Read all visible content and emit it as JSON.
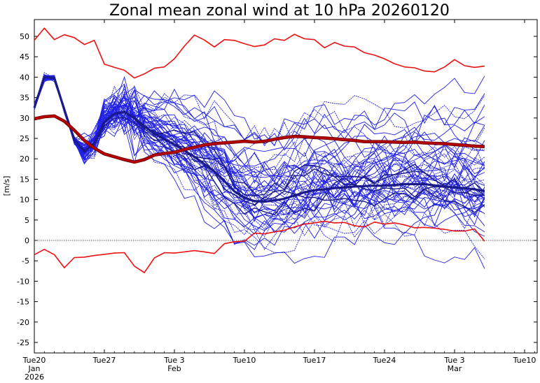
{
  "chart_data": {
    "type": "line",
    "title": "Zonal mean zonal wind at 10 hPa 20260120",
    "ylabel": "[m/s]",
    "xlabel": "",
    "ylim": [
      -28,
      55
    ],
    "xlim": [
      0,
      50
    ],
    "grid": false,
    "y_ticks": [
      50,
      45,
      40,
      35,
      30,
      25,
      20,
      15,
      10,
      5,
      0,
      -5,
      -10,
      -15,
      -20,
      -25
    ],
    "x_ticks": [
      {
        "day": 0,
        "lines": [
          "Tue20",
          "Jan",
          "2026"
        ]
      },
      {
        "day": 7,
        "lines": [
          "Tue27"
        ]
      },
      {
        "day": 14,
        "lines": [
          "Tue 3",
          "Feb"
        ]
      },
      {
        "day": 21,
        "lines": [
          "Tue10"
        ]
      },
      {
        "day": 28,
        "lines": [
          "Tue17"
        ]
      },
      {
        "day": 35,
        "lines": [
          "Tue24"
        ]
      },
      {
        "day": 42,
        "lines": [
          "Tue 3",
          "Mar"
        ]
      },
      {
        "day": 49,
        "lines": [
          "Tue10"
        ]
      }
    ],
    "x_unit": "days since Jan 20 2026",
    "zero_line": 0,
    "colors": {
      "members": "#1f1fe6",
      "ensemble_mean": "#1a1a8a",
      "climatology_mean": "#b40000",
      "climatology_extremes": "#ee1111"
    },
    "series": [
      {
        "name": "",
        "role": "climatology_max",
        "x": [
          0,
          1,
          2,
          3,
          4,
          5,
          6,
          7,
          8,
          9,
          10,
          11,
          12,
          13,
          14,
          15,
          16,
          17,
          18,
          19,
          20,
          21,
          22,
          23,
          24,
          25,
          26,
          27,
          28,
          29,
          30,
          31,
          32,
          33,
          34,
          35,
          36,
          37,
          38,
          39,
          40,
          41,
          42,
          43,
          44,
          45
        ],
        "values": [
          49,
          52,
          49.2,
          50.4,
          49.7,
          48,
          49,
          43.2,
          42.4,
          41.7,
          39.8,
          40.8,
          42.2,
          42.5,
          44.5,
          47.6,
          50.3,
          49.1,
          47.4,
          49.2,
          49,
          48.2,
          47.5,
          47.9,
          49.4,
          49,
          50.5,
          49.4,
          49.2,
          47.2,
          48.5,
          47.6,
          47.4,
          46,
          45.4,
          44.5,
          43.3,
          42.5,
          42.3,
          41.5,
          41.3,
          42.5,
          44.3,
          42.8,
          42.4,
          42.7
        ]
      },
      {
        "name": "",
        "role": "climatology_min",
        "x": [
          0,
          1,
          2,
          3,
          4,
          5,
          6,
          7,
          8,
          9,
          10,
          11,
          12,
          13,
          14,
          15,
          16,
          17,
          18,
          19,
          20,
          21,
          22,
          23,
          24,
          25,
          26,
          27,
          28,
          29,
          30,
          31,
          32,
          33,
          34,
          35,
          36,
          37,
          38,
          39,
          40,
          41,
          42,
          43,
          44,
          45
        ],
        "values": [
          -3.5,
          -2.2,
          -3.5,
          -6.7,
          -4.2,
          -4.1,
          -3.7,
          -3.4,
          -3.1,
          -3,
          -6.3,
          -7.9,
          -4.3,
          -3,
          -3.1,
          -2.8,
          -2.5,
          -2.8,
          -3.2,
          -0.8,
          -0.3,
          -0.2,
          1.8,
          1.6,
          2.1,
          2.5,
          3.3,
          4,
          4.3,
          4.7,
          4.3,
          4.4,
          3.6,
          3.3,
          4.5,
          4,
          4.3,
          3.8,
          3.1,
          3.2,
          3,
          2.7,
          2.3,
          2.3,
          2.8,
          -0.2
        ]
      },
      {
        "name": "",
        "role": "climatology_mean",
        "x": [
          0,
          1,
          2,
          3,
          4,
          5,
          6,
          7,
          8,
          9,
          10,
          11,
          12,
          13,
          14,
          15,
          16,
          17,
          18,
          19,
          20,
          21,
          22,
          23,
          24,
          25,
          26,
          27,
          28,
          29,
          30,
          31,
          32,
          33,
          34,
          35,
          36,
          37,
          38,
          39,
          40,
          41,
          42,
          43,
          44,
          45
        ],
        "values": [
          29.8,
          30.3,
          30.5,
          29.2,
          27,
          24.5,
          22.6,
          21.2,
          20.5,
          19.8,
          19.2,
          19.8,
          20.9,
          21.3,
          21.6,
          22.3,
          22.8,
          23.4,
          23.7,
          23.9,
          24.1,
          24.3,
          24.1,
          24.3,
          24.8,
          25.2,
          25.5,
          25.4,
          25.2,
          25.1,
          24.9,
          24.7,
          24.5,
          24.2,
          24.2,
          24.2,
          24.1,
          24,
          24.1,
          23.9,
          23.8,
          23.7,
          23.5,
          23.3,
          23.1,
          23
        ]
      },
      {
        "name": "",
        "role": "ensemble_mean",
        "x": [
          0,
          1,
          2,
          3,
          4,
          5,
          6,
          7,
          8,
          9,
          10,
          11,
          12,
          13,
          14,
          15,
          16,
          17,
          18,
          19,
          20,
          21,
          22,
          23,
          24,
          25,
          26,
          27,
          28,
          29,
          30,
          31,
          32,
          33,
          34,
          35,
          36,
          37,
          38,
          39,
          40,
          41,
          42,
          43,
          44,
          45
        ],
        "values": [
          32.5,
          40,
          39.8,
          32,
          24.6,
          21.8,
          23.8,
          29,
          31,
          31.5,
          30,
          28,
          26.2,
          24.8,
          23.5,
          22,
          20.5,
          18.7,
          16.9,
          14.5,
          12,
          10.5,
          9.6,
          9.5,
          9.8,
          10.2,
          11,
          11.8,
          12.3,
          12.5,
          12.8,
          13,
          13.2,
          13.3,
          13.4,
          13.4,
          13.6,
          13.8,
          13.8,
          13.8,
          13.5,
          13.2,
          13,
          12.8,
          12.5,
          12.1
        ]
      }
    ],
    "members_note": "51 ensemble member traces of daily zonal-mean zonal wind"
  }
}
